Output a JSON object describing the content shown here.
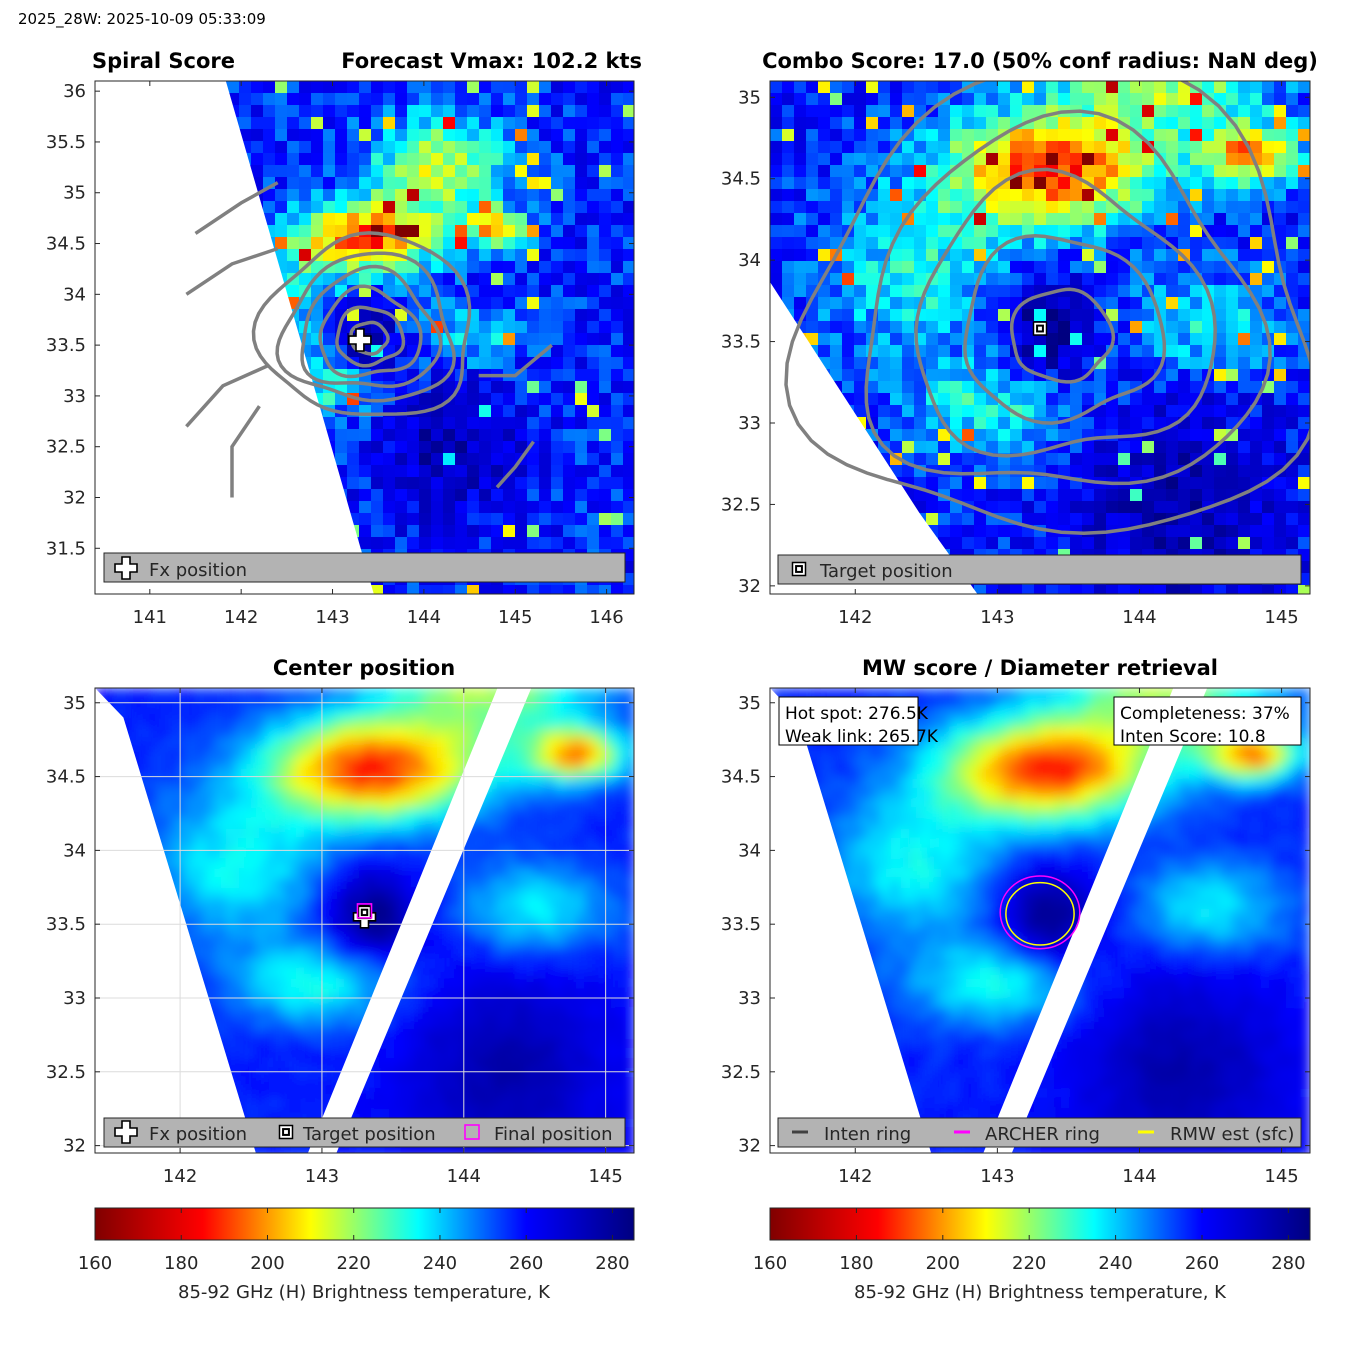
{
  "header": "2025_28W: 2025-10-09 05:33:09",
  "colormap": [
    "#800000",
    "#c00000",
    "#ff0000",
    "#ff8000",
    "#ffff00",
    "#80ff80",
    "#00ffff",
    "#0080ff",
    "#0000ff",
    "#0000c0",
    "#000080"
  ],
  "colors": {
    "contour": "#808080",
    "archer_ring": "#ff00ff",
    "rmw_ring": "#ffff00",
    "inten_ring": "#404040",
    "legend_bg": "#b3b3b3"
  },
  "chart_data": [
    {
      "type": "heatmap",
      "panel": "spiral",
      "title_left": "Spiral Score",
      "title_right": "Forecast Vmax: 102.2 kts",
      "xlim": [
        140.4,
        146.3
      ],
      "ylim": [
        31.05,
        36.1
      ],
      "xticks": [
        141,
        142,
        143,
        144,
        145,
        146
      ],
      "yticks": [
        31.5,
        32,
        32.5,
        33,
        33.5,
        34,
        34.5,
        35,
        35.5,
        36
      ],
      "grid": false,
      "contours": true,
      "markers": [
        {
          "kind": "fx-cross",
          "x": 143.3,
          "y": 33.55
        }
      ],
      "legend": {
        "placement": "bottom",
        "entries": [
          {
            "icon": "fx-cross",
            "label": "Fx position"
          }
        ]
      }
    },
    {
      "type": "heatmap",
      "panel": "combo",
      "title": "Combo Score: 17.0  (50% conf radius: NaN deg)",
      "xlim": [
        141.4,
        145.2
      ],
      "ylim": [
        31.95,
        35.1
      ],
      "xticks": [
        142,
        143,
        144,
        145
      ],
      "yticks": [
        32,
        32.5,
        33,
        33.5,
        34,
        34.5,
        35
      ],
      "grid": false,
      "contours": true,
      "markers": [
        {
          "kind": "target-square",
          "x": 143.3,
          "y": 33.58
        }
      ],
      "legend": {
        "placement": "bottom",
        "entries": [
          {
            "icon": "target-square",
            "label": "Target position"
          }
        ]
      }
    },
    {
      "type": "heatmap",
      "panel": "center",
      "title": "Center position",
      "xlim": [
        141.4,
        145.2
      ],
      "ylim": [
        31.95,
        35.1
      ],
      "xticks": [
        142,
        143,
        144,
        145
      ],
      "yticks": [
        32,
        32.5,
        33,
        33.5,
        34,
        34.5,
        35
      ],
      "grid": true,
      "markers": [
        {
          "kind": "fx-cross",
          "x": 143.3,
          "y": 33.55
        },
        {
          "kind": "target-square",
          "x": 143.3,
          "y": 33.58
        },
        {
          "kind": "final-square",
          "x": 143.3,
          "y": 33.59
        }
      ],
      "legend": {
        "placement": "bottom",
        "entries": [
          {
            "icon": "fx-cross",
            "label": "Fx position"
          },
          {
            "icon": "target-square",
            "label": "Target position"
          },
          {
            "icon": "final-square",
            "label": "Final position"
          }
        ]
      }
    },
    {
      "type": "heatmap",
      "panel": "mw",
      "title": "MW score / Diameter retrieval",
      "xlim": [
        141.4,
        145.2
      ],
      "ylim": [
        31.95,
        35.1
      ],
      "xticks": [
        142,
        143,
        144,
        145
      ],
      "yticks": [
        32,
        32.5,
        33,
        33.5,
        34,
        34.5,
        35
      ],
      "grid": false,
      "info_left": [
        "Hot spot: 276.5K",
        "Weak link: 265.7K"
      ],
      "info_right": [
        "Completeness: 37%",
        "Inten Score: 10.8"
      ],
      "rings": [
        {
          "kind": "archer",
          "x": 143.3,
          "y": 33.58,
          "r": 0.28
        },
        {
          "kind": "rmw",
          "x": 143.3,
          "y": 33.57,
          "r": 0.24
        }
      ],
      "legend": {
        "placement": "bottom",
        "entries": [
          {
            "icon": "inten-ring",
            "label": "Inten ring"
          },
          {
            "icon": "archer-ring",
            "label": "ARCHER ring"
          },
          {
            "icon": "rmw-ring",
            "label": "RMW est (sfc)"
          }
        ]
      }
    }
  ],
  "colorbars": [
    {
      "range": [
        160,
        285
      ],
      "ticks": [
        160,
        180,
        200,
        220,
        240,
        260,
        280
      ],
      "label": "85-92 GHz (H) Brightness temperature, K"
    },
    {
      "range": [
        160,
        285
      ],
      "ticks": [
        160,
        180,
        200,
        220,
        240,
        260,
        280
      ],
      "label": "85-92 GHz (H) Brightness temperature, K"
    }
  ]
}
